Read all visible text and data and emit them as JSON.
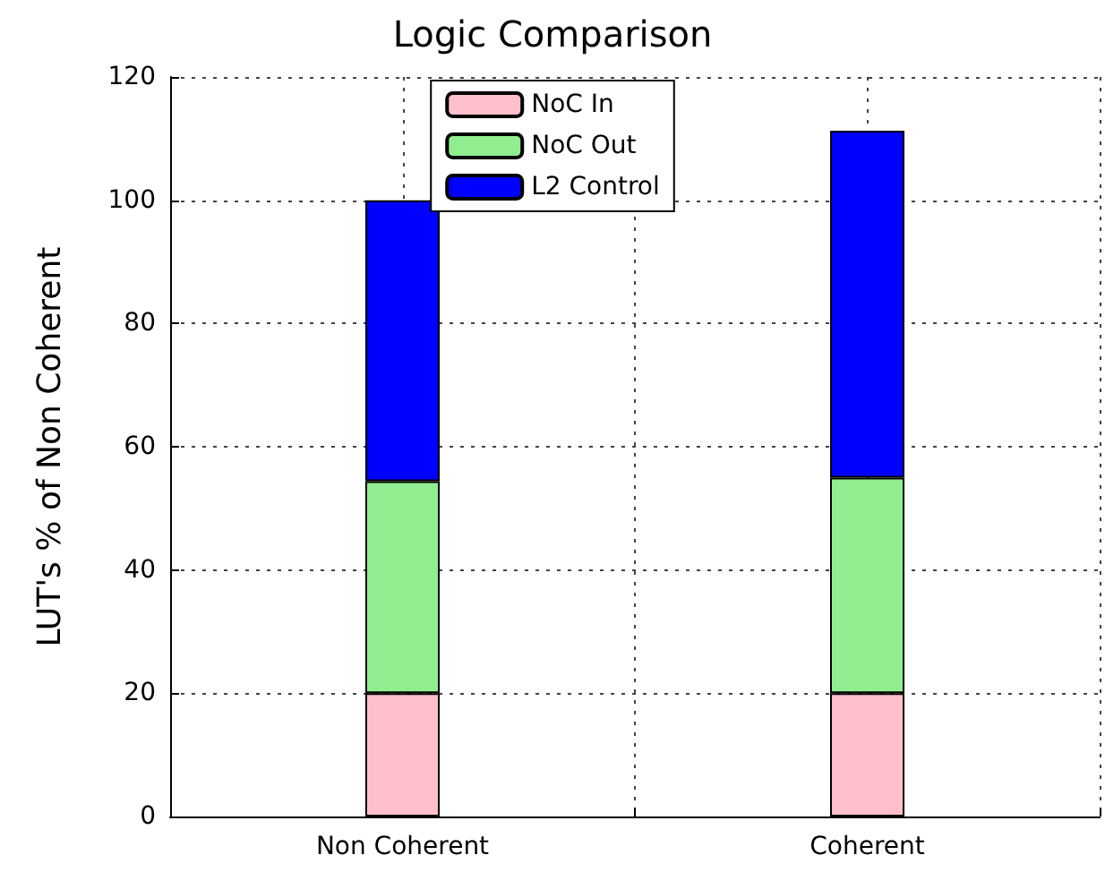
{
  "chart_data": {
    "type": "bar",
    "title": "Logic Comparison",
    "ylabel": "LUT's % of Non Coherent",
    "categories": [
      null,
      "Non Coherent",
      null,
      "Coherent",
      null
    ],
    "stacked": true,
    "series": [
      {
        "name": "NoC In",
        "color": "#ffc0cb",
        "values": [
          null,
          20,
          null,
          20,
          null
        ]
      },
      {
        "name": "NoC Out",
        "color": "#90ee90",
        "values": [
          null,
          34.4,
          null,
          35,
          null
        ]
      },
      {
        "name": "L2 Control",
        "color": "#0000ff",
        "values": [
          null,
          45.6,
          null,
          56.3,
          null
        ]
      }
    ],
    "ylim": [
      0,
      120
    ],
    "yticks": [
      0,
      20,
      40,
      60,
      80,
      100,
      120
    ],
    "grid": true,
    "legend": "top"
  }
}
